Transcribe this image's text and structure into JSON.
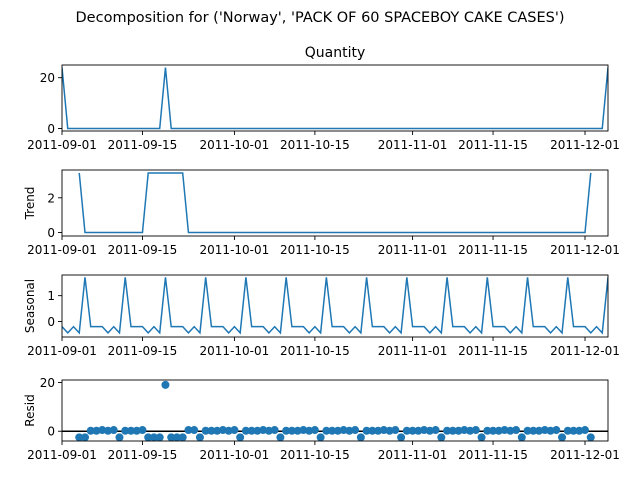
{
  "figure": {
    "suptitle": "Decomposition for ('Norway', 'PACK OF 60 SPACEBOY CAKE CASES')"
  },
  "colors": {
    "line": "#1f77b4",
    "axis": "#000000",
    "zero_line": "#000000"
  },
  "chart_data": [
    {
      "type": "line",
      "title": "Quantity",
      "ylabel": "",
      "ylim": [
        -1,
        25
      ],
      "yticks": [
        0,
        20
      ],
      "xlim": [
        "2011-09-01",
        "2011-12-05"
      ],
      "xtick_labels": [
        "2011-09-01",
        "2011-09-15",
        "2011-10-01",
        "2011-10-15",
        "2011-11-01",
        "2011-11-15",
        "2011-12-01"
      ],
      "series": [
        {
          "points": [
            [
              "2011-09-01",
              24
            ],
            [
              "2011-09-02",
              0
            ],
            [
              "2011-09-18",
              0
            ],
            [
              "2011-09-19",
              24
            ],
            [
              "2011-09-20",
              0
            ],
            [
              "2011-12-04",
              0
            ],
            [
              "2011-12-05",
              24
            ]
          ]
        }
      ]
    },
    {
      "type": "line",
      "title": "",
      "ylabel": "Trend",
      "ylim": [
        -0.2,
        3.6
      ],
      "yticks": [
        0,
        2
      ],
      "xlim": [
        "2011-09-01",
        "2011-12-05"
      ],
      "xtick_labels": [
        "2011-09-01",
        "2011-09-15",
        "2011-10-01",
        "2011-10-15",
        "2011-11-01",
        "2011-11-15",
        "2011-12-01"
      ],
      "series": [
        {
          "points": [
            [
              "2011-09-04",
              3.43
            ],
            [
              "2011-09-05",
              0
            ],
            [
              "2011-09-15",
              0
            ],
            [
              "2011-09-16",
              3.43
            ],
            [
              "2011-09-22",
              3.43
            ],
            [
              "2011-09-23",
              0
            ],
            [
              "2011-12-01",
              0
            ],
            [
              "2011-12-02",
              3.43
            ]
          ]
        }
      ]
    },
    {
      "type": "line",
      "title": "",
      "ylabel": "Seasonal",
      "ylim": [
        -0.6,
        1.8
      ],
      "yticks": [
        0,
        1
      ],
      "xlim": [
        "2011-09-01",
        "2011-12-05"
      ],
      "xtick_labels": [
        "2011-09-01",
        "2011-09-15",
        "2011-10-01",
        "2011-10-15",
        "2011-11-01",
        "2011-11-15",
        "2011-12-01"
      ],
      "series": [
        {
          "start": "2011-09-01",
          "weekly_pattern": [
            -0.2,
            -0.44,
            -0.2,
            -0.44,
            1.71,
            -0.2,
            -0.2
          ],
          "end": "2011-12-05"
        }
      ]
    },
    {
      "type": "scatter",
      "title": "",
      "ylabel": "Resid",
      "ylim": [
        -4,
        21
      ],
      "yticks": [
        0,
        20
      ],
      "zero_line": true,
      "xlim": [
        "2011-09-01",
        "2011-12-05"
      ],
      "xtick_labels": [
        "2011-09-01",
        "2011-09-15",
        "2011-10-01",
        "2011-10-15",
        "2011-11-01",
        "2011-11-15",
        "2011-12-01"
      ],
      "series": [
        {
          "start": "2011-09-04",
          "end": "2011-12-02",
          "weekly_pattern": [
            -2.5,
            0.2,
            0.2,
            0.2,
            0.5,
            0.2,
            0.5
          ],
          "overrides": [
            [
              "2011-09-05",
              -2.5
            ],
            [
              "2011-09-16",
              -2.5
            ],
            [
              "2011-09-17",
              -2.5
            ],
            [
              "2011-09-18",
              -2.5
            ],
            [
              "2011-09-19",
              19
            ],
            [
              "2011-09-20",
              -2.5
            ],
            [
              "2011-09-21",
              -2.5
            ],
            [
              "2011-09-22",
              -2.5
            ],
            [
              "2011-09-23",
              0.5
            ],
            [
              "2011-12-02",
              -2.5
            ]
          ]
        }
      ]
    }
  ]
}
